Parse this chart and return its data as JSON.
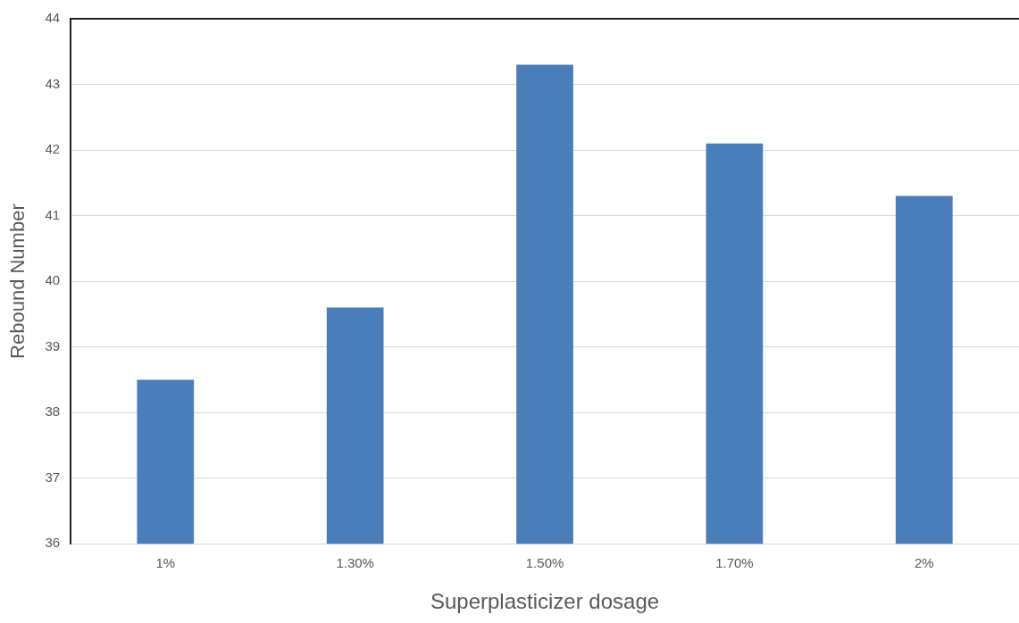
{
  "chart_data": {
    "type": "bar",
    "xlabel": "Superplasticizer dosage",
    "ylabel": "Rebound Number",
    "categories": [
      "1%",
      "1.30%",
      "1.50%",
      "1.70%",
      "2%"
    ],
    "values": [
      38.5,
      39.6,
      43.3,
      42.1,
      41.3
    ],
    "color": "#4a7ebb",
    "ylim": [
      36,
      44
    ],
    "yticks": [
      36,
      37,
      38,
      39,
      40,
      41,
      42,
      43,
      44
    ],
    "grid": "y",
    "legend": false
  }
}
